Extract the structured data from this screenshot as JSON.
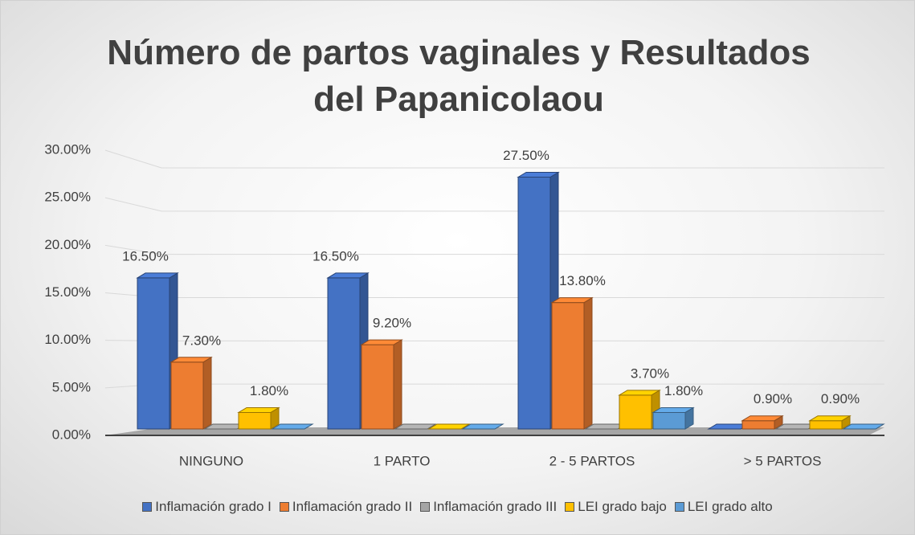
{
  "chart_data": {
    "type": "bar3d",
    "title": "Número de partos vaginales y Resultados del Papanicolaou",
    "categories": [
      "NINGUNO",
      "1 PARTO",
      "2 - 5 PARTOS",
      "> 5 PARTOS"
    ],
    "series": [
      {
        "name": "Inflamación grado I",
        "color": "#4472c4",
        "values": [
          16.5,
          16.5,
          27.5,
          0
        ],
        "value_labels": [
          "16.50%",
          "16.50%",
          "27.50%",
          null
        ]
      },
      {
        "name": "Inflamación grado II",
        "color": "#ed7d31",
        "values": [
          7.3,
          9.2,
          13.8,
          0.9
        ],
        "value_labels": [
          "7.30%",
          "9.20%",
          "13.80%",
          "0.90%"
        ]
      },
      {
        "name": "Inflamación grado III",
        "color": "#a5a5a5",
        "values": [
          0,
          0,
          0,
          0
        ],
        "value_labels": [
          null,
          null,
          null,
          null
        ]
      },
      {
        "name": "LEI grado bajo",
        "color": "#ffc000",
        "values": [
          1.8,
          0,
          3.7,
          0.9
        ],
        "value_labels": [
          "1.80%",
          null,
          "3.70%",
          "0.90%"
        ]
      },
      {
        "name": "LEI grado alto",
        "color": "#5b9bd5",
        "values": [
          0,
          0,
          1.8,
          0
        ],
        "value_labels": [
          null,
          null,
          "1.80%",
          null
        ]
      }
    ],
    "ylim": [
      0,
      30
    ],
    "yticks": [
      {
        "value": 0,
        "label": "0.00%"
      },
      {
        "value": 5,
        "label": "5.00%"
      },
      {
        "value": 10,
        "label": "10.00%"
      },
      {
        "value": 15,
        "label": "15.00%"
      },
      {
        "value": 20,
        "label": "20.00%"
      },
      {
        "value": 25,
        "label": "25.00%"
      },
      {
        "value": 30,
        "label": "30.00%"
      }
    ],
    "grid": true,
    "legend": "bottom"
  }
}
